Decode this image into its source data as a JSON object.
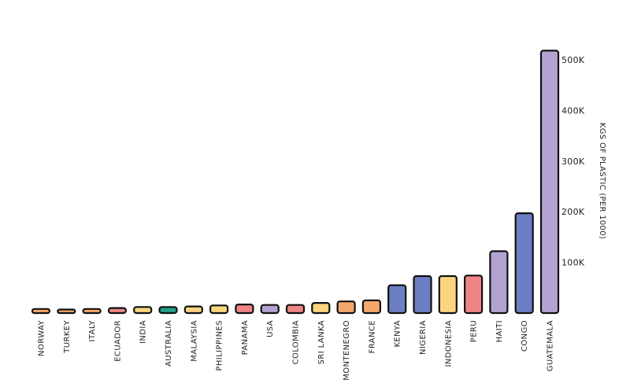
{
  "chart_data": {
    "type": "bar",
    "title": "",
    "xlabel": "",
    "ylabel": "KGS OF PLASTIC (PER 1000)",
    "ylim": [
      0,
      520000
    ],
    "yticks": [
      100000,
      200000,
      300000,
      400000,
      500000
    ],
    "ytick_labels": [
      "100K",
      "200K",
      "300K",
      "400K",
      "500K"
    ],
    "y_axis_position": "right",
    "grid": false,
    "legend": "none",
    "categories": [
      "NORWAY",
      "TURKEY",
      "ITALY",
      "ECUADOR",
      "INDIA",
      "AUSTRALIA",
      "MALAYSIA",
      "PHILIPPINES",
      "PANAMA",
      "USA",
      "COLOMBIA",
      "SRI LANKA",
      "MONTENEGRO",
      "FRANCE",
      "KENYA",
      "NIGERIA",
      "INDONESIA",
      "PERU",
      "HAITI",
      "CONGO",
      "GUATEMALA"
    ],
    "values": [
      8000,
      7000,
      8000,
      10000,
      12000,
      12000,
      13000,
      15000,
      17000,
      16000,
      16000,
      20000,
      23000,
      25000,
      55000,
      73000,
      73000,
      74000,
      122000,
      197000,
      518000
    ],
    "colors": [
      "#f5a86b",
      "#f5a86b",
      "#f5a86b",
      "#f08585",
      "#fbd67f",
      "#23a08a",
      "#fbd67f",
      "#fbd67f",
      "#f08585",
      "#b3a3d3",
      "#f08585",
      "#fbd67f",
      "#f5a86b",
      "#f5a86b",
      "#6c7fc4",
      "#6c7fc4",
      "#fbd67f",
      "#f08585",
      "#b3a3d3",
      "#6c7fc4",
      "#b3a3d3"
    ]
  }
}
